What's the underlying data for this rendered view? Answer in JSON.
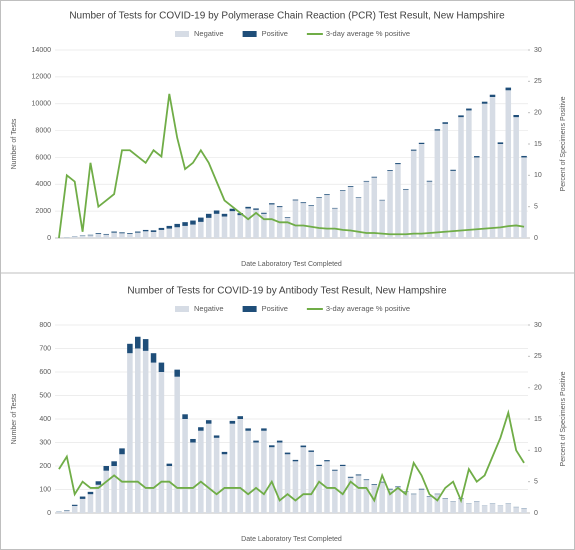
{
  "chart_data": [
    {
      "type": "bar",
      "title": "Number of Tests for COVID-19 by Polymerase Chain Reaction (PCR) Test Result, New Hampshire",
      "x_label": "Date Laboratory Test Completed",
      "y_label": "Number of Tests",
      "y2_label": "Percent of Specimens Positive",
      "categories": [
        null,
        null,
        null,
        null,
        null,
        null,
        null,
        null,
        null,
        null,
        null,
        null,
        null,
        null,
        null,
        null,
        null,
        null,
        null,
        null,
        null,
        null,
        null,
        null,
        null,
        null,
        null,
        null,
        null,
        null,
        null,
        null,
        null,
        null,
        null,
        null,
        null,
        null,
        null,
        null,
        null,
        null,
        null,
        null,
        null,
        null,
        null,
        null,
        null,
        null,
        null,
        null,
        null,
        null,
        null,
        null,
        null,
        null,
        null,
        null
      ],
      "series": [
        {
          "name": "Negative",
          "color": "#d6dce5",
          "values": [
            10,
            50,
            100,
            150,
            200,
            300,
            250,
            400,
            350,
            300,
            400,
            500,
            450,
            600,
            700,
            800,
            900,
            1000,
            1200,
            1500,
            1800,
            1600,
            2000,
            1700,
            2200,
            2100,
            1800,
            2500,
            2300,
            1500,
            2800,
            2600,
            2400,
            3000,
            3200,
            2200,
            3500,
            3800,
            3000,
            4200,
            4500,
            2800,
            5000,
            5500,
            3600,
            6500,
            7000,
            4200,
            8000,
            8500,
            5000,
            9000,
            9500,
            6000,
            10000,
            10500,
            7000,
            11000,
            9000,
            6000
          ]
        },
        {
          "name": "Positive",
          "color": "#1f4e79",
          "values": [
            2,
            10,
            20,
            30,
            40,
            60,
            50,
            80,
            70,
            60,
            80,
            100,
            120,
            150,
            200,
            250,
            280,
            300,
            320,
            300,
            250,
            200,
            180,
            150,
            120,
            100,
            80,
            90,
            70,
            50,
            60,
            60,
            50,
            50,
            60,
            40,
            50,
            60,
            40,
            50,
            60,
            40,
            60,
            80,
            50,
            80,
            90,
            60,
            100,
            120,
            80,
            130,
            140,
            100,
            150,
            170,
            120,
            200,
            160,
            110
          ]
        },
        {
          "name": "3-day average % positive",
          "color": "#70ad47",
          "type": "line",
          "axis": "y2",
          "values": [
            0,
            10,
            9,
            1,
            12,
            5,
            6,
            7,
            14,
            14,
            13,
            12,
            14,
            13,
            23,
            16,
            11,
            12,
            14,
            12,
            9,
            6,
            5,
            4,
            3,
            4,
            3,
            3,
            2.5,
            2.5,
            2,
            2,
            1.8,
            1.6,
            1.5,
            1.5,
            1.3,
            1.2,
            1,
            0.8,
            0.8,
            0.7,
            0.6,
            0.6,
            0.6,
            0.7,
            0.7,
            0.8,
            0.9,
            1,
            1.1,
            1.2,
            1.3,
            1.4,
            1.5,
            1.6,
            1.7,
            1.9,
            2,
            1.8
          ]
        }
      ],
      "ylim": [
        0,
        14000
      ],
      "yticks": [
        0,
        2000,
        4000,
        6000,
        8000,
        10000,
        12000,
        14000
      ],
      "y2lim": [
        0,
        30
      ],
      "y2ticks": [
        0,
        5,
        10,
        15,
        20,
        25,
        30
      ],
      "legend": "top"
    },
    {
      "type": "bar",
      "title": "Number of Tests for COVID-19 by Antibody Test Result, New Hampshire",
      "x_label": "Date Laboratory Test Completed",
      "y_label": "Number of Tests",
      "y2_label": "Percent of Specimens Positive",
      "categories": [
        null,
        null,
        null,
        null,
        null,
        null,
        null,
        null,
        null,
        null,
        null,
        null,
        null,
        null,
        null,
        null,
        null,
        null,
        null,
        null,
        null,
        null,
        null,
        null,
        null,
        null,
        null,
        null,
        null,
        null,
        null,
        null,
        null,
        null,
        null,
        null,
        null,
        null,
        null,
        null,
        null,
        null,
        null,
        null,
        null,
        null,
        null,
        null,
        null,
        null,
        null,
        null,
        null,
        null,
        null,
        null,
        null,
        null,
        null,
        null
      ],
      "series": [
        {
          "name": "Negative",
          "color": "#d6dce5",
          "values": [
            5,
            10,
            30,
            60,
            80,
            120,
            180,
            200,
            250,
            680,
            700,
            690,
            640,
            600,
            200,
            580,
            400,
            300,
            350,
            380,
            320,
            250,
            380,
            400,
            350,
            300,
            350,
            280,
            300,
            250,
            220,
            280,
            260,
            200,
            220,
            180,
            200,
            150,
            160,
            140,
            120,
            130,
            100,
            110,
            90,
            80,
            100,
            70,
            80,
            60,
            50,
            60,
            40,
            50,
            30,
            40,
            30,
            40,
            25,
            20
          ]
        },
        {
          "name": "Positive",
          "color": "#1f4e79",
          "values": [
            1,
            2,
            5,
            10,
            10,
            15,
            20,
            20,
            25,
            40,
            50,
            50,
            40,
            40,
            10,
            30,
            20,
            15,
            15,
            15,
            10,
            10,
            12,
            12,
            10,
            8,
            10,
            8,
            8,
            7,
            6,
            7,
            6,
            5,
            5,
            4,
            5,
            4,
            4,
            3,
            3,
            3,
            3,
            3,
            2,
            2,
            3,
            2,
            2,
            2,
            1,
            2,
            1,
            1,
            1,
            1,
            1,
            1,
            1,
            1
          ]
        },
        {
          "name": "3-day average % positive",
          "color": "#70ad47",
          "type": "line",
          "axis": "y2",
          "values": [
            7,
            9,
            3,
            5,
            4,
            4,
            5,
            6,
            5,
            5,
            5,
            4,
            4,
            5,
            5,
            4,
            4,
            4,
            5,
            4,
            3,
            4,
            4,
            4,
            3,
            4,
            3,
            5,
            2,
            3,
            2,
            3,
            3,
            5,
            4,
            4,
            3,
            5,
            4,
            4,
            2,
            6,
            3,
            4,
            3,
            8,
            6,
            3,
            2,
            4,
            5,
            2,
            7,
            5,
            6,
            9,
            12,
            16,
            10,
            8
          ]
        }
      ],
      "ylim": [
        0,
        800
      ],
      "yticks": [
        0,
        100,
        200,
        300,
        400,
        500,
        600,
        700,
        800
      ],
      "y2lim": [
        0,
        30
      ],
      "y2ticks": [
        0,
        5,
        10,
        15,
        20,
        25,
        30
      ],
      "legend": "top"
    }
  ]
}
